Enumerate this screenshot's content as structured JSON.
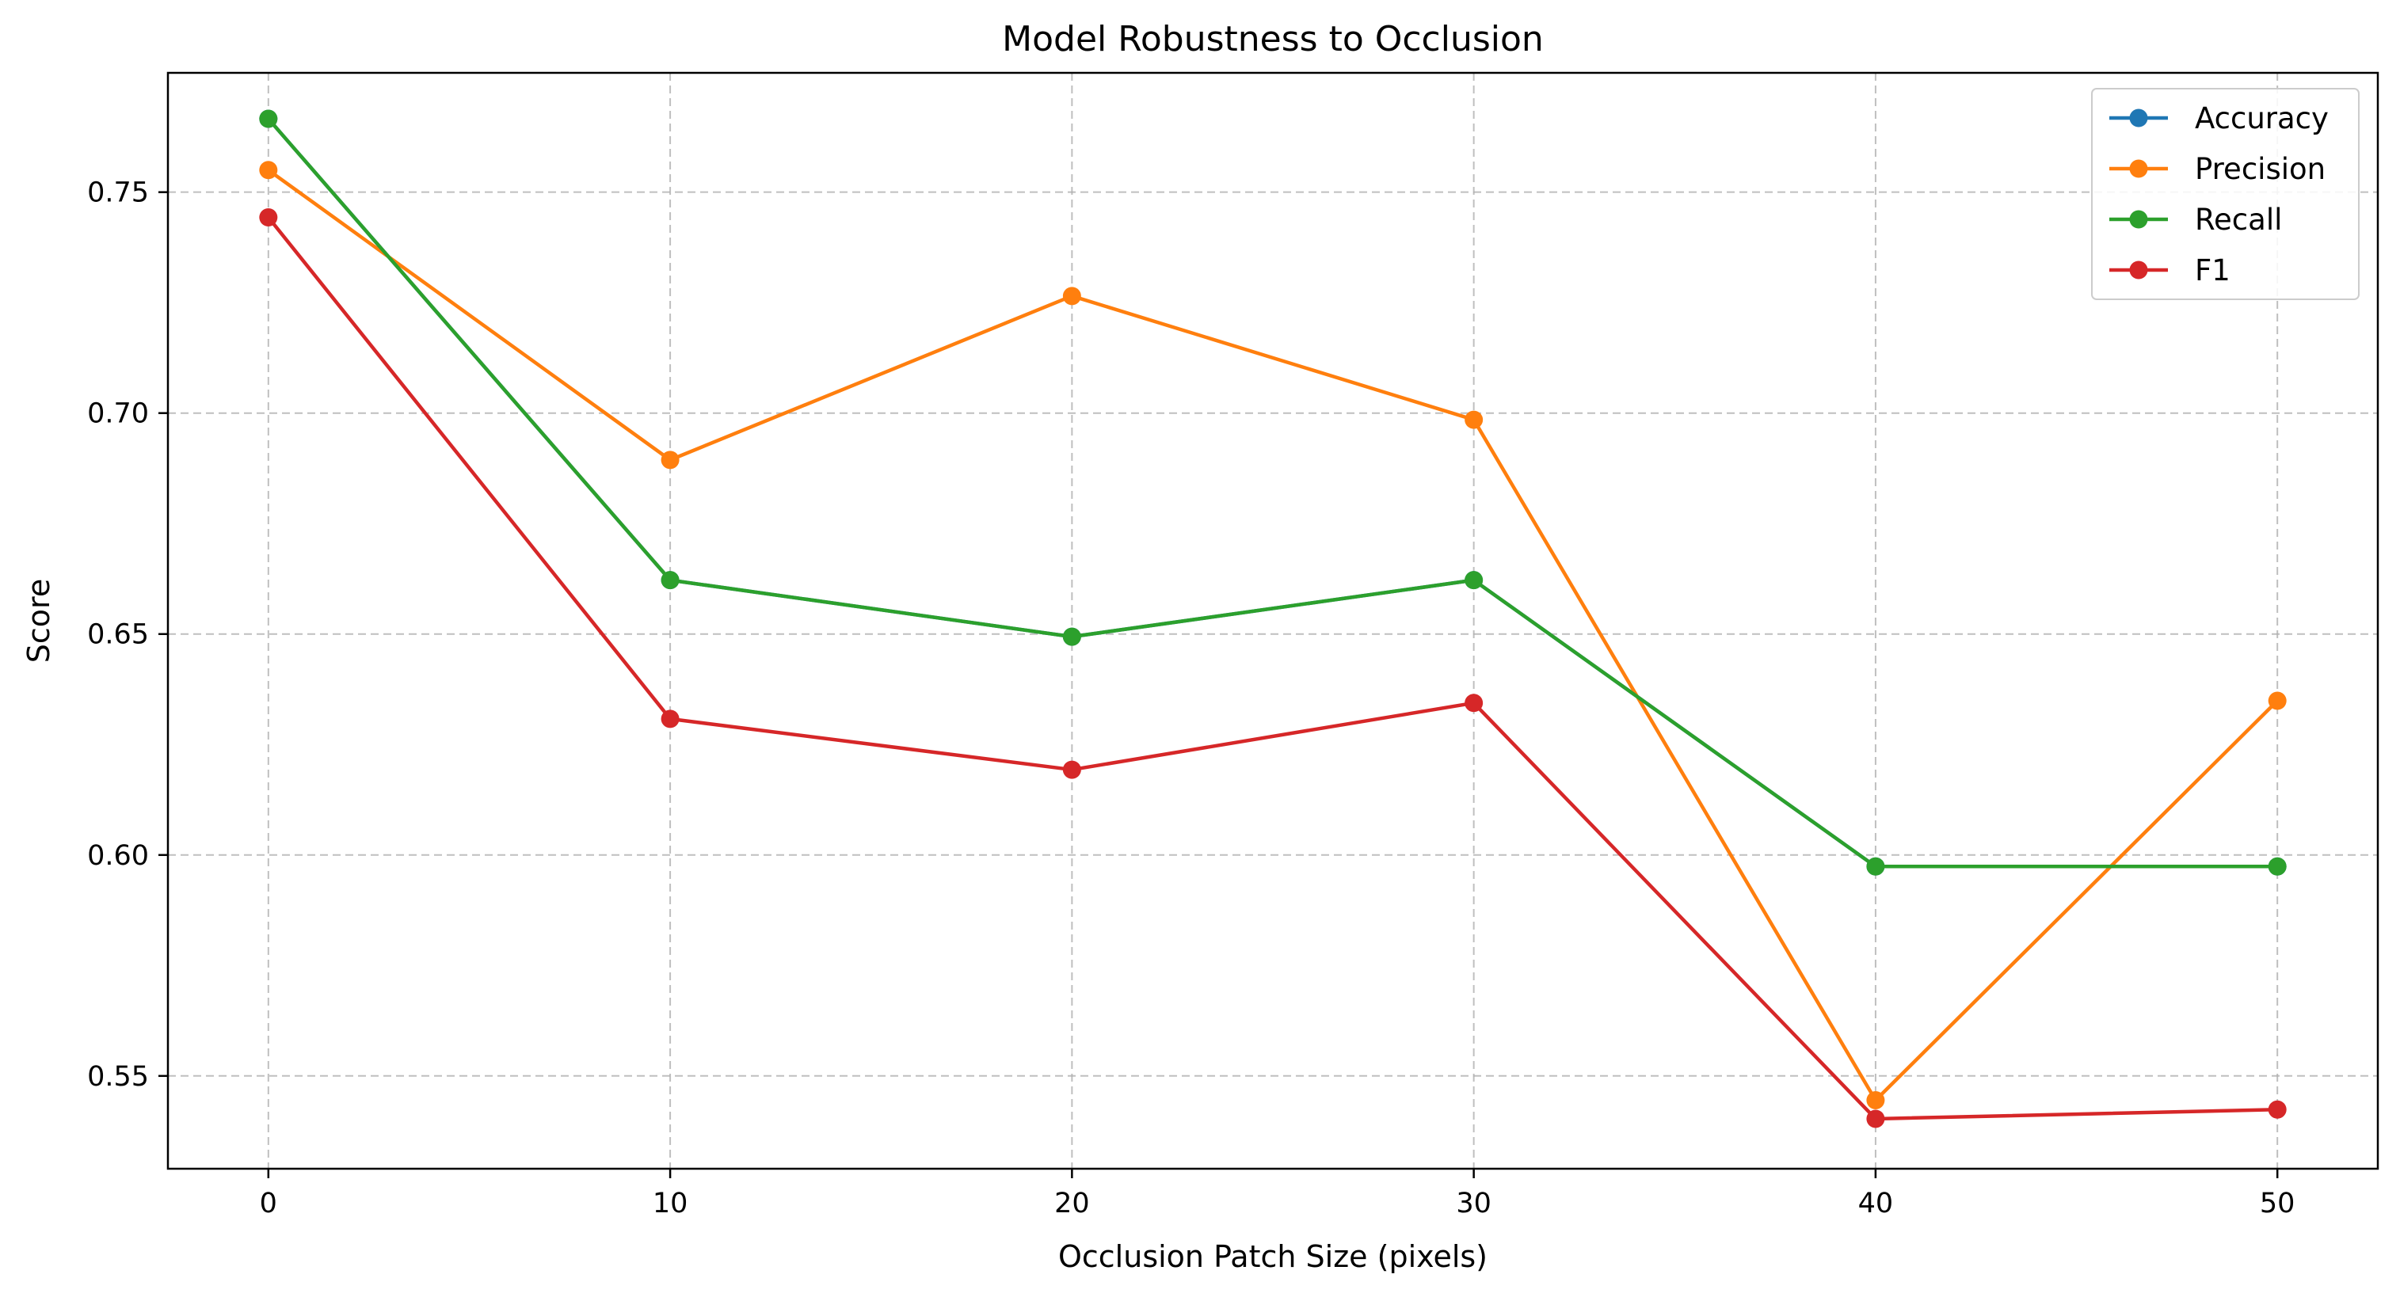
{
  "chart_data": {
    "type": "line",
    "title": "Model Robustness to Occlusion",
    "xlabel": "Occlusion Patch Size (pixels)",
    "ylabel": "Score",
    "x": [
      0,
      10,
      20,
      30,
      40,
      50
    ],
    "xlim": [
      -2.5,
      52.5
    ],
    "ylim": [
      0.529,
      0.777
    ],
    "xticks": [
      0,
      10,
      20,
      30,
      40,
      50
    ],
    "yticks": [
      0.55,
      0.6,
      0.65,
      0.7,
      0.75
    ],
    "xtick_labels": [
      "0",
      "10",
      "20",
      "30",
      "40",
      "50"
    ],
    "ytick_labels": [
      "0.55",
      "0.60",
      "0.65",
      "0.70",
      "0.75"
    ],
    "grid": true,
    "legend_position": "top-right",
    "series": [
      {
        "name": "Accuracy",
        "color": "#1f77b4",
        "values": [
          0.7666,
          0.6622,
          0.6494,
          0.6622,
          0.5974,
          0.5974
        ]
      },
      {
        "name": "Precision",
        "color": "#ff7f0e",
        "values": [
          0.755,
          0.6894,
          0.7265,
          0.6985,
          0.5445,
          0.6349
        ]
      },
      {
        "name": "Recall",
        "color": "#2ca02c",
        "values": [
          0.7666,
          0.6622,
          0.6494,
          0.6622,
          0.5974,
          0.5974
        ]
      },
      {
        "name": "F1",
        "color": "#d62728",
        "values": [
          0.7443,
          0.6308,
          0.6193,
          0.6344,
          0.5403,
          0.5424
        ]
      }
    ]
  }
}
